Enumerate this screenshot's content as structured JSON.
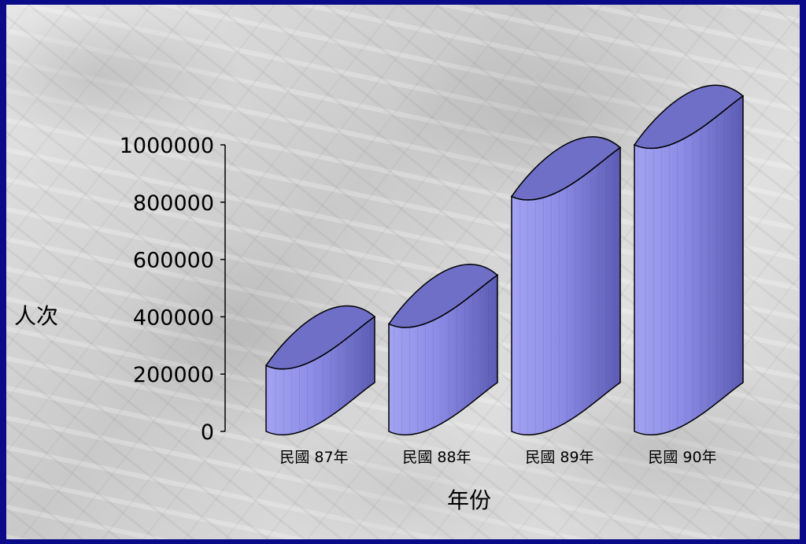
{
  "chart_data": {
    "type": "bar",
    "categories": [
      "民國 87年",
      "民國 88年",
      "民國 89年",
      "民國 90年"
    ],
    "values": [
      230000,
      375000,
      820000,
      1000000
    ],
    "xlabel": "年份",
    "ylabel": "人次",
    "ylim": [
      0,
      1000000
    ],
    "yticks": [
      "0",
      "200000",
      "400000",
      "600000",
      "800000",
      "1000000"
    ],
    "grid": false,
    "legend": "none",
    "bar_color": "#8c8ce6",
    "bar_top_color": "#6f6fc8"
  }
}
